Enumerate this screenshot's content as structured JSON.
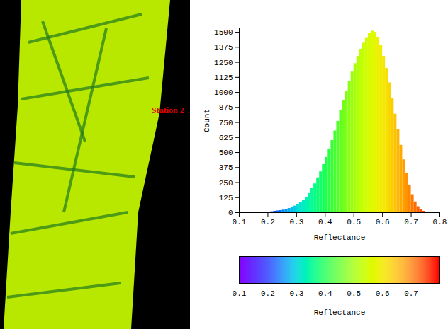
{
  "image": {
    "annotation": "Station 2"
  },
  "chart_data": {
    "type": "histogram",
    "bins": [
      0.2,
      0.21,
      0.22,
      0.23,
      0.24,
      0.25,
      0.26,
      0.27,
      0.28,
      0.29,
      0.3,
      0.31,
      0.32,
      0.33,
      0.34,
      0.35,
      0.36,
      0.37,
      0.38,
      0.39,
      0.4,
      0.41,
      0.42,
      0.43,
      0.44,
      0.45,
      0.46,
      0.47,
      0.48,
      0.49,
      0.5,
      0.51,
      0.52,
      0.53,
      0.54,
      0.55,
      0.56,
      0.57,
      0.58,
      0.59,
      0.6,
      0.61,
      0.62,
      0.63,
      0.64,
      0.65,
      0.66,
      0.67,
      0.68,
      0.69,
      0.7,
      0.71,
      0.72,
      0.73,
      0.74,
      0.75,
      0.76,
      0.77
    ],
    "counts": [
      5,
      8,
      12,
      15,
      18,
      22,
      28,
      35,
      45,
      55,
      70,
      85,
      105,
      130,
      160,
      200,
      240,
      290,
      340,
      400,
      460,
      530,
      600,
      680,
      760,
      850,
      930,
      1010,
      1090,
      1170,
      1240,
      1300,
      1360,
      1410,
      1450,
      1490,
      1510,
      1500,
      1460,
      1390,
      1300,
      1200,
      1080,
      950,
      820,
      690,
      560,
      440,
      330,
      230,
      150,
      90,
      50,
      25,
      12,
      5,
      2
    ],
    "xlabel": "Reflectance",
    "ylabel": "Count",
    "xlim": [
      0.1,
      0.8
    ],
    "xticks": [
      0.1,
      0.2,
      0.3,
      0.4,
      0.5,
      0.6,
      0.7,
      0.8
    ],
    "ylim": [
      0,
      1530
    ],
    "yticks": [
      0,
      125,
      250,
      375,
      500,
      625,
      750,
      875,
      1000,
      1125,
      1250,
      1375,
      1500
    ],
    "colorbar": {
      "range": [
        0.1,
        0.8
      ],
      "ticks": [
        0.1,
        0.2,
        0.3,
        0.4,
        0.5,
        0.6,
        0.7
      ],
      "label": "Reflectance"
    }
  }
}
